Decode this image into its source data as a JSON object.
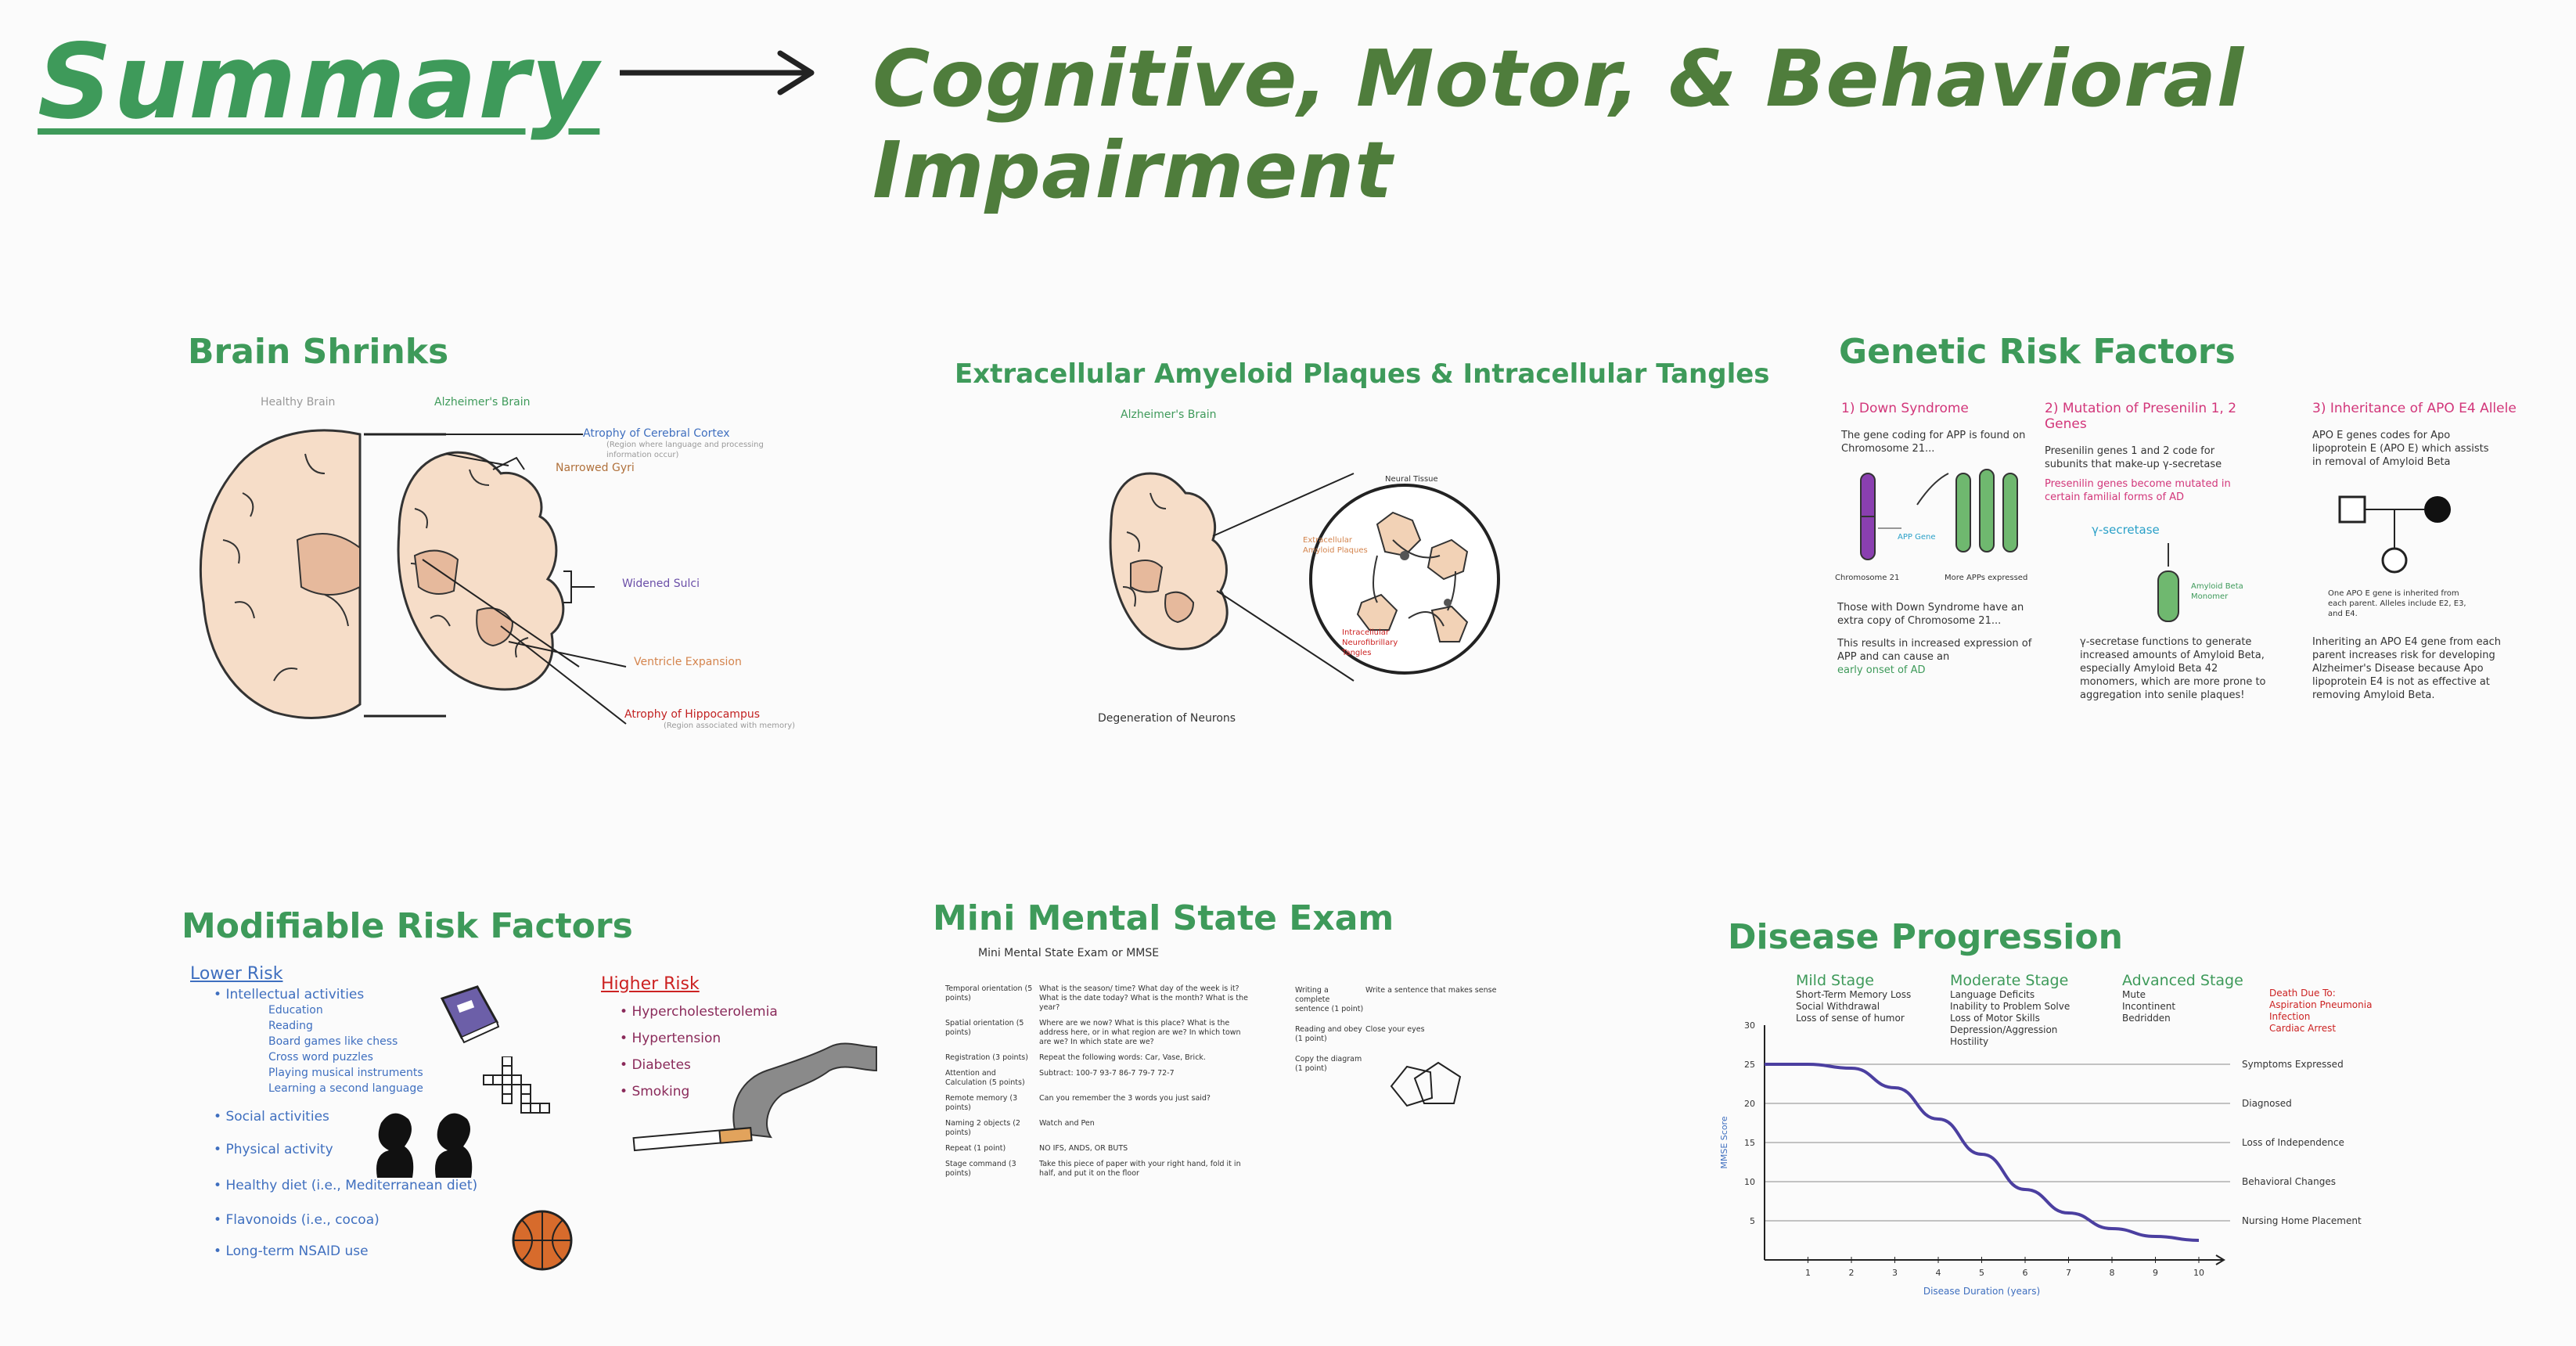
{
  "header": {
    "summary": "Summary",
    "arrow": "→",
    "title": "Cognitive, Motor, & Behavioral Impairment"
  },
  "brain_shrinks": {
    "title": "Brain Shrinks",
    "healthy_label": "Healthy Brain",
    "alz_label": "Alzheimer's Brain",
    "annotations": [
      {
        "text": "Atrophy of Cerebral Cortex",
        "color": "#3f6fbf",
        "sub": "(Region where language and processing information occur)"
      },
      {
        "text": "Narrowed Gyri",
        "color": "#b0713c",
        "sub": ""
      },
      {
        "text": "Widened Sulci",
        "color": "#6b4fa8",
        "sub": ""
      },
      {
        "text": "Ventricle Expansion",
        "color": "#d4844d",
        "sub": ""
      },
      {
        "text": "Atrophy of Hippocampus",
        "color": "#c22222",
        "sub": "(Region associated with memory)"
      }
    ]
  },
  "plaques": {
    "title": "Extracellular Amyeloid Plaques & Intracellular Tangles",
    "brain_label": "Alzheimer's Brain",
    "neural_tissue": "Neural Tissue",
    "plaques_label": "Extracellular Amyloid Plaques",
    "tangles_label": "Intracellular Neurofibrillary Tangles",
    "degeneration": "Degeneration of Neurons"
  },
  "genetic": {
    "title": "Genetic Risk Factors",
    "col1": {
      "heading": "1) Down Syndrome",
      "line1": "The gene coding for APP is found on Chromosome 21...",
      "chromosome_label": "Chromosome 21",
      "app_gene_label": "APP Gene",
      "more_app": "More APPs expressed",
      "line2": "Those with Down Syndrome have an extra copy of Chromosome 21...",
      "line3": "This results in increased expression of APP and can cause an",
      "early": "early onset of AD"
    },
    "col2": {
      "heading": "2) Mutation of Presenilin 1, 2 Genes",
      "line1": "Presenilin genes 1 and 2 code for subunits that make-up γ-secretase",
      "mutated": "Presenilin genes become mutated in certain familial forms of AD",
      "gamma": "γ-secretase",
      "amyloid": "Amyloid Beta Monomer",
      "line2": "γ-secretase functions to generate increased amounts of Amyloid Beta, especially Amyloid Beta 42 monomers, which are more prone to aggregation into senile plaques!"
    },
    "col3": {
      "heading": "3) Inheritance of APO E4 Allele",
      "line1": "APO E genes codes for Apo lipoprotein E (APO E) which assists in removal of Amyloid Beta",
      "pedigree_note": "One APO E gene is inherited from each parent. Alleles include E2, E3, and E4.",
      "line2": "Inheriting an APO E4 gene from each parent increases risk for developing Alzheimer's Disease because Apo lipoprotein E4 is not as effective at removing Amyloid Beta."
    }
  },
  "modifiable": {
    "title": "Modifiable Risk Factors",
    "lower_label": "Lower Risk",
    "lower_items": [
      {
        "text": "Intellectual activities",
        "sub": [
          "Education",
          "Reading",
          "Board games like chess",
          "Cross word puzzles",
          "Playing musical instruments",
          "Learning a second language"
        ]
      },
      {
        "text": "Social activities",
        "sub": []
      },
      {
        "text": "Physical activity",
        "sub": []
      },
      {
        "text": "Healthy diet (i.e., Mediterranean diet)",
        "sub": []
      },
      {
        "text": "Flavonoids (i.e., cocoa)",
        "sub": []
      },
      {
        "text": "Long-term NSAID use",
        "sub": []
      }
    ],
    "higher_label": "Higher Risk",
    "higher_items": [
      "Hypercholesterolemia",
      "Hypertension",
      "Diabetes",
      "Smoking"
    ]
  },
  "mmse": {
    "title": "Mini Mental State Exam",
    "subtitle": "Mini Mental State Exam or MMSE",
    "rows": [
      {
        "cat": "Temporal orientation (5 points)",
        "q": "What is the season/ time? What day of the week is it? What is the date today? What is the month? What is the year?"
      },
      {
        "cat": "Spatial orientation (5 points)",
        "q": "Where are we now? What is this place? What is the address here, or in what region are we? In which town are we? In which state are we?"
      },
      {
        "cat": "Registration (3 points)",
        "q": "Repeat the following words: Car, Vase, Brick."
      },
      {
        "cat": "Attention and Calculation (5 points)",
        "q": "Subtract: 100-7  93-7  86-7  79-7  72-7"
      },
      {
        "cat": "Remote memory (3 points)",
        "q": "Can you remember the 3 words you just said?"
      },
      {
        "cat": "Naming 2 objects (2 points)",
        "q": "Watch and Pen"
      },
      {
        "cat": "Repeat (1 point)",
        "q": "NO IFS, ANDS, OR BUTS"
      },
      {
        "cat": "Stage command (3 points)",
        "q": "Take this piece of paper with your right hand, fold it in half, and put it on the floor"
      }
    ],
    "right_rows": [
      {
        "cat": "Writing a complete sentence (1 point)",
        "q": "Write a sentence that makes sense"
      },
      {
        "cat": "Reading and obey (1 point)",
        "q": "Close your eyes"
      },
      {
        "cat": "Copy the diagram (1 point)",
        "q": ""
      }
    ]
  },
  "progression": {
    "title": "Disease Progression",
    "stages": [
      {
        "title": "Mild Stage",
        "items": [
          "Short-Term Memory Loss",
          "Social Withdrawal",
          "Loss of sense of humor"
        ]
      },
      {
        "title": "Moderate Stage",
        "items": [
          "Language Deficits",
          "Inability to Problem Solve",
          "Loss of Motor Skills",
          "Depression/Aggression",
          "Hostility"
        ]
      },
      {
        "title": "Advanced Stage",
        "items": [
          "Mute",
          "Incontinent",
          "Bedridden"
        ]
      }
    ],
    "death": {
      "title": "Death Due To:",
      "items": [
        "Aspiration Pneumonia",
        "Infection",
        "Cardiac Arrest"
      ]
    },
    "events": [
      "Symptoms Expressed",
      "Diagnosed",
      "Loss of Independence",
      "Behavioral Changes",
      "Nursing Home Placement"
    ],
    "ylabel": "MMSE Score",
    "xlabel": "Disease Duration (years)"
  },
  "chart_data": {
    "type": "line",
    "x": [
      0,
      1,
      2,
      3,
      4,
      5,
      6,
      7,
      8,
      9,
      10
    ],
    "series": [
      {
        "values": [
          25,
          25,
          24.5,
          22,
          18,
          13.5,
          9,
          6,
          4,
          3,
          2.5
        ]
      }
    ],
    "xlabel": "Disease Duration (years)",
    "ylabel": "MMSE Score",
    "xlim": [
      0,
      10
    ],
    "ylim": [
      0,
      30
    ],
    "xticks": [
      1,
      2,
      3,
      4,
      5,
      6,
      7,
      8,
      9,
      10
    ],
    "yticks": [
      5,
      10,
      15,
      20,
      25,
      30
    ],
    "reference_lines": [
      {
        "y": 25,
        "label": "Symptoms Expressed"
      },
      {
        "y": 20,
        "label": "Diagnosed"
      },
      {
        "y": 15,
        "label": "Loss of Independence"
      },
      {
        "y": 10,
        "label": "Behavioral Changes"
      },
      {
        "y": 5,
        "label": "Nursing Home Placement"
      }
    ],
    "line_color": "#4b3fa0"
  }
}
